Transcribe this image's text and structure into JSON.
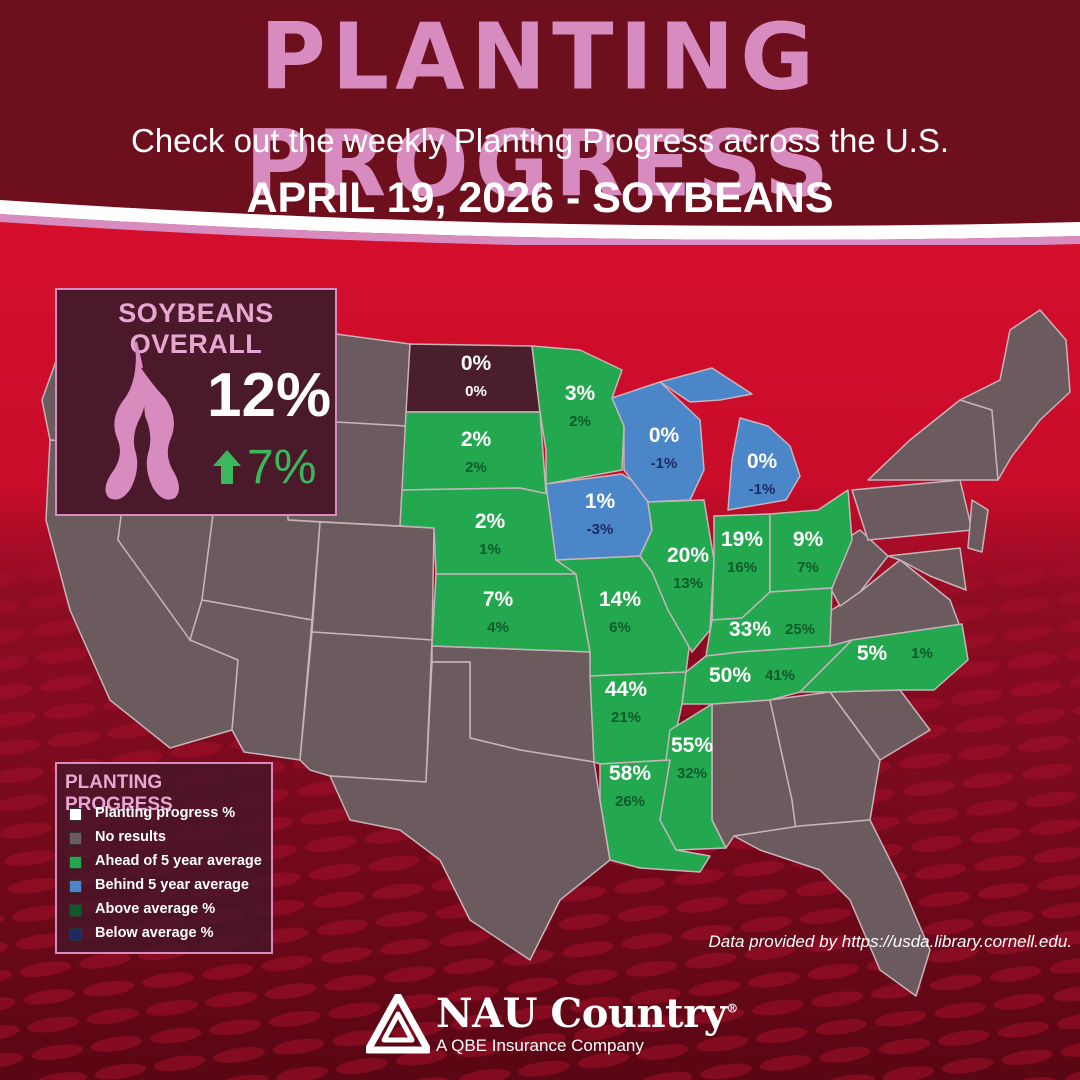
{
  "header": {
    "title": "PLANTING PROGRESS",
    "subtitle": "Check out the weekly Planting Progress across the U.S.",
    "dateline": "APRIL 19, 2026 - SOYBEANS"
  },
  "overall": {
    "heading": "SOYBEANS OVERALL",
    "value": "12%",
    "change": "7%",
    "change_direction": "up",
    "icon": "soybean-pod-icon"
  },
  "legend": {
    "title": "PLANTING PROGRESS",
    "items": [
      {
        "label": "Planting progress %",
        "color": "#ffffff"
      },
      {
        "label": "No results",
        "color": "#6b5a5e"
      },
      {
        "label": "Ahead of 5 year average",
        "color": "#23a84f"
      },
      {
        "label": "Behind 5 year average",
        "color": "#4a86c8"
      },
      {
        "label": "Above average %",
        "color": "#0e5a2a"
      },
      {
        "label": "Below average %",
        "color": "#1e2a66"
      }
    ]
  },
  "colors": {
    "banner": "#6e0f1e",
    "title": "#d88bbf",
    "ahead": "#23a84f",
    "behind": "#4a86c8",
    "no_results": "#6b5a5e",
    "dark_state": "#4a1e2a",
    "above_text": "#0e5a2a",
    "below_text": "#1e2a66"
  },
  "states": [
    {
      "id": "ND",
      "status": "dark",
      "progress": "0%",
      "vs_avg": "0%"
    },
    {
      "id": "SD",
      "status": "ahead",
      "progress": "2%",
      "vs_avg": "2%"
    },
    {
      "id": "NE",
      "status": "ahead",
      "progress": "2%",
      "vs_avg": "1%"
    },
    {
      "id": "KS",
      "status": "ahead",
      "progress": "7%",
      "vs_avg": "4%"
    },
    {
      "id": "MN",
      "status": "ahead",
      "progress": "3%",
      "vs_avg": "2%"
    },
    {
      "id": "IA",
      "status": "behind",
      "progress": "1%",
      "vs_avg": "-3%"
    },
    {
      "id": "WI",
      "status": "behind",
      "progress": "0%",
      "vs_avg": "-1%"
    },
    {
      "id": "MI",
      "status": "behind",
      "progress": "0%",
      "vs_avg": "-1%"
    },
    {
      "id": "MO",
      "status": "ahead",
      "progress": "14%",
      "vs_avg": "6%"
    },
    {
      "id": "IL",
      "status": "ahead",
      "progress": "20%",
      "vs_avg": "13%"
    },
    {
      "id": "IN",
      "status": "ahead",
      "progress": "19%",
      "vs_avg": "16%"
    },
    {
      "id": "OH",
      "status": "ahead",
      "progress": "9%",
      "vs_avg": "7%"
    },
    {
      "id": "KY",
      "status": "ahead",
      "progress": "33%",
      "vs_avg": "25%"
    },
    {
      "id": "TN",
      "status": "ahead",
      "progress": "50%",
      "vs_avg": "41%"
    },
    {
      "id": "NC",
      "status": "ahead",
      "progress": "5%",
      "vs_avg": "1%"
    },
    {
      "id": "AR",
      "status": "ahead",
      "progress": "44%",
      "vs_avg": "21%"
    },
    {
      "id": "MS",
      "status": "ahead",
      "progress": "55%",
      "vs_avg": "32%"
    },
    {
      "id": "LA",
      "status": "ahead",
      "progress": "58%",
      "vs_avg": "26%"
    }
  ],
  "source": "Data provided by https://usda.library.cornell.edu.",
  "logo": {
    "name": "NAU Country",
    "registered": "®",
    "tagline": "A QBE Insurance Company"
  }
}
